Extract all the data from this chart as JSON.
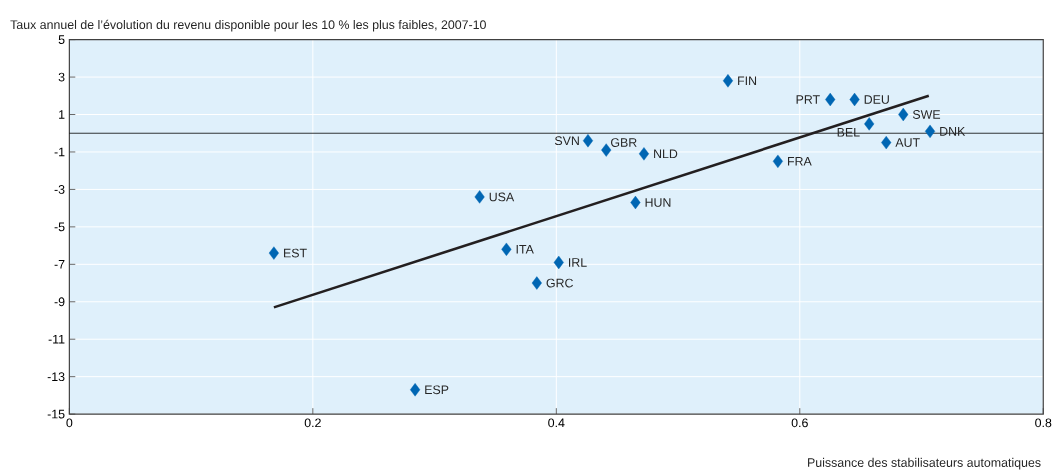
{
  "chart_data": {
    "type": "scatter",
    "ylabel": "Taux annuel de l’évolution du revenu disponible pour les 10 % les plus faibles, 2007-10",
    "xlabel": "Puissance des stabilisateurs automatiques",
    "xlim": [
      0,
      0.8
    ],
    "xticks": [
      0,
      0.2,
      0.4,
      0.6,
      0.8
    ],
    "ylim": [
      -15,
      5
    ],
    "yticks": [
      -15,
      -13,
      -11,
      -9,
      -7,
      -5,
      -3,
      -1,
      1,
      3,
      5
    ],
    "grid": true,
    "marker": "diamond",
    "ref_lines": [
      {
        "axis": "y",
        "value": 0,
        "color": "#000000"
      }
    ],
    "series": [
      {
        "color": "#0066b3",
        "x": [
          0.168,
          0.284,
          0.337,
          0.359,
          0.384,
          0.402,
          0.426,
          0.441,
          0.465,
          0.472,
          0.541,
          0.582,
          0.625,
          0.645,
          0.657,
          0.671,
          0.685,
          0.707
        ],
        "values": [
          -6.4,
          -13.7,
          -3.4,
          -6.2,
          -8.0,
          -6.9,
          -0.4,
          -0.9,
          -3.7,
          -1.1,
          2.8,
          -1.5,
          1.8,
          1.8,
          0.5,
          -0.5,
          1.0,
          0.1
        ]
      },
      {
        "type": "line",
        "color": "#231f20",
        "marker": "none",
        "x": [
          0.168,
          0.706
        ],
        "values": [
          -9.3,
          2.0
        ]
      }
    ],
    "annotations": [
      {
        "text": "EST",
        "x": 0.168,
        "y": -6.4
      },
      {
        "text": "ESP",
        "x": 0.284,
        "y": -13.7
      },
      {
        "text": "USA",
        "x": 0.337,
        "y": -3.4
      },
      {
        "text": "ITA",
        "x": 0.359,
        "y": -6.2
      },
      {
        "text": "GRC",
        "x": 0.384,
        "y": -8.0
      },
      {
        "text": "IRL",
        "x": 0.402,
        "y": -6.9
      },
      {
        "text": "SVN",
        "x": 0.426,
        "y": -0.4
      },
      {
        "text": "GBR",
        "x": 0.441,
        "y": -0.9
      },
      {
        "text": "HUN",
        "x": 0.465,
        "y": -3.7
      },
      {
        "text": "NLD",
        "x": 0.472,
        "y": -1.1
      },
      {
        "text": "FIN",
        "x": 0.541,
        "y": 2.8
      },
      {
        "text": "FRA",
        "x": 0.582,
        "y": -1.5
      },
      {
        "text": "PRT",
        "x": 0.625,
        "y": 1.8
      },
      {
        "text": "DEU",
        "x": 0.645,
        "y": 1.8
      },
      {
        "text": "BEL",
        "x": 0.657,
        "y": 0.5
      },
      {
        "text": "AUT",
        "x": 0.671,
        "y": -0.5
      },
      {
        "text": "SWE",
        "x": 0.685,
        "y": 1.0
      },
      {
        "text": "DNK",
        "x": 0.707,
        "y": 0.1
      }
    ]
  }
}
